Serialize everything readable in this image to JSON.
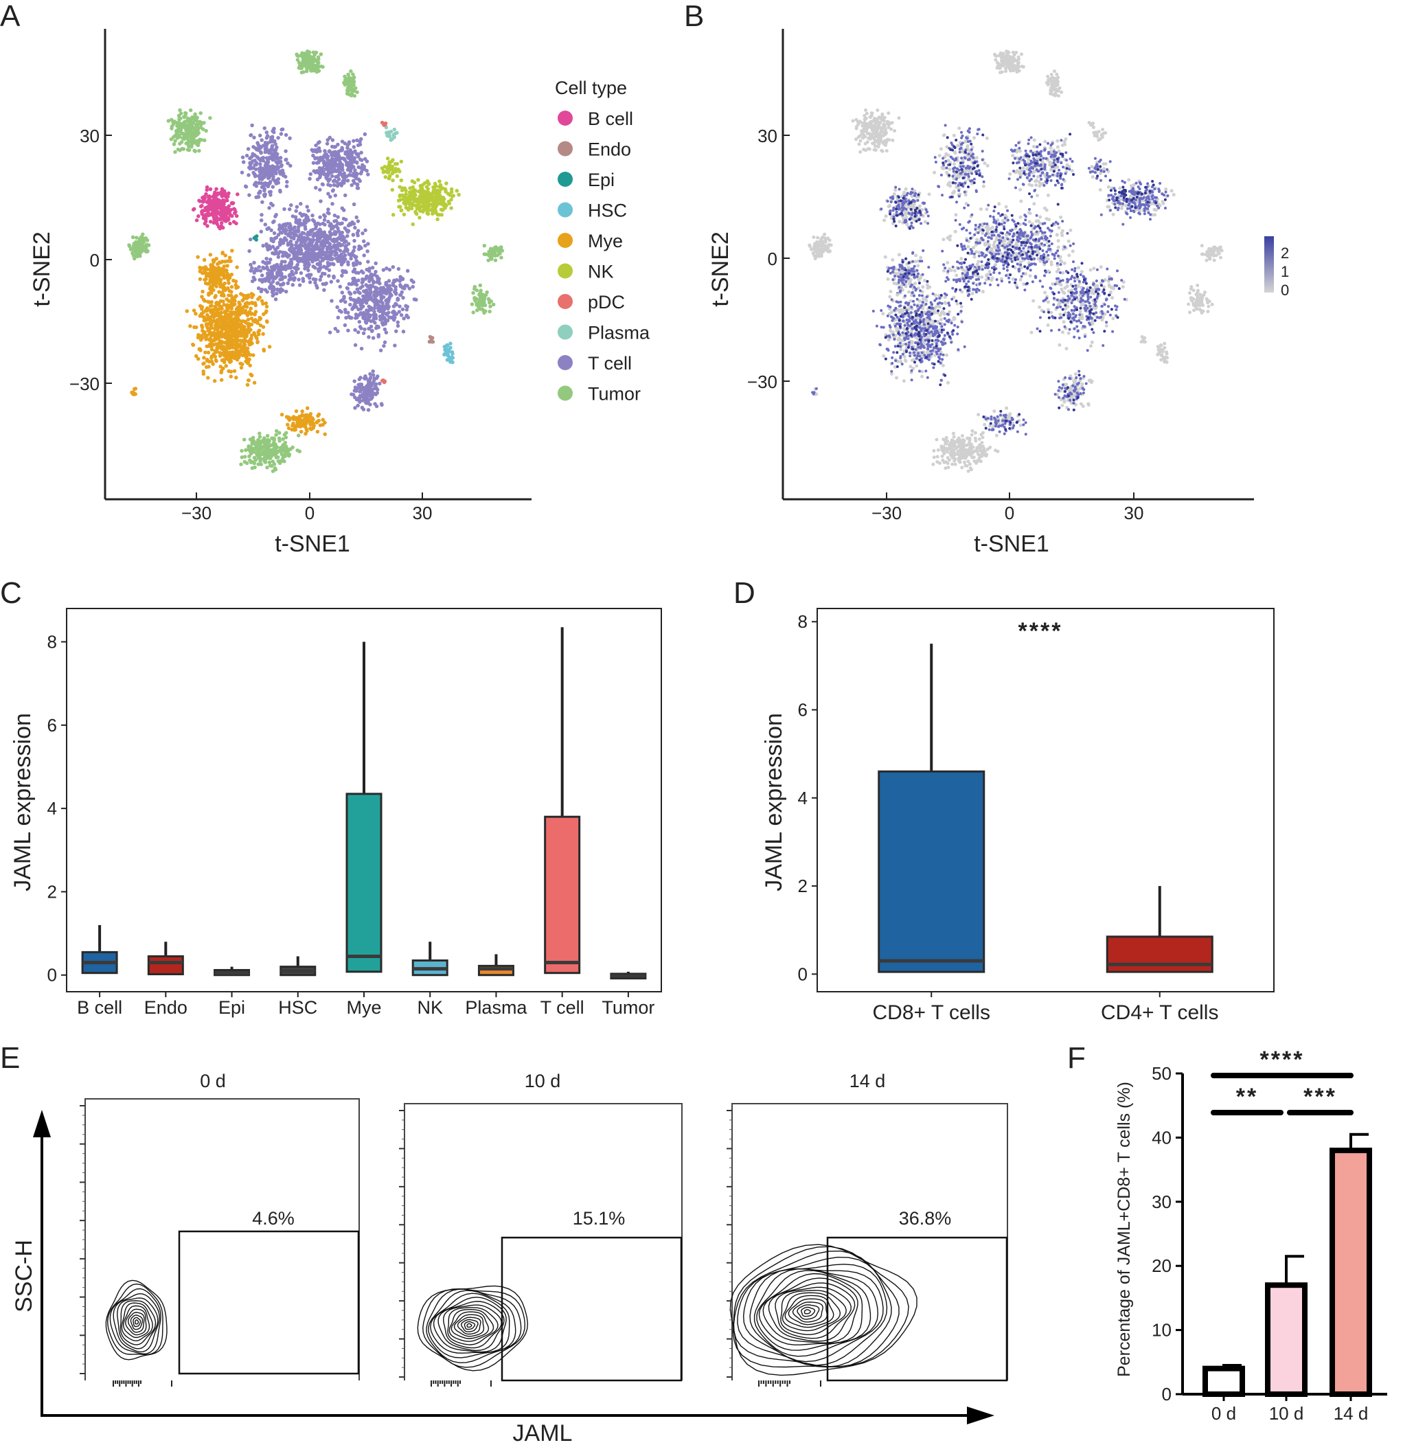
{
  "panels": {
    "A": {
      "letter": "A",
      "xlabel": "t-SNE1",
      "ylabel": "t-SNE2",
      "xticks": [
        "−30",
        "0",
        "30"
      ],
      "yticks": [
        "30",
        "0",
        "−30"
      ],
      "legend_title": "Cell type",
      "legend": [
        {
          "label": "B cell",
          "color": "#e0489a"
        },
        {
          "label": "Endo",
          "color": "#b58a86"
        },
        {
          "label": "Epi",
          "color": "#1f9a93"
        },
        {
          "label": "HSC",
          "color": "#6cc3d5"
        },
        {
          "label": "Mye",
          "color": "#e8a11c"
        },
        {
          "label": "NK",
          "color": "#b7cc38"
        },
        {
          "label": "pDC",
          "color": "#e8706d"
        },
        {
          "label": "Plasma",
          "color": "#8fcfbf"
        },
        {
          "label": "T cell",
          "color": "#8c82c3"
        },
        {
          "label": "Tumor",
          "color": "#93c97e"
        }
      ]
    },
    "B": {
      "letter": "B",
      "xlabel": "t-SNE1",
      "ylabel": "t-SNE2",
      "xticks": [
        "−30",
        "0",
        "30"
      ],
      "yticks": [
        "30",
        "0",
        "−30"
      ],
      "colorbar_ticks": [
        "2",
        "1",
        "0"
      ],
      "colorbar_colors": [
        "#3a3fa0",
        "#d4d4d4"
      ]
    },
    "E": {
      "letter": "E",
      "xlabel": "JAML",
      "ylabel": "SSC-H",
      "plots": [
        {
          "condition": "0 d",
          "gate": "4.6%"
        },
        {
          "condition": "10 d",
          "gate": "15.1%"
        },
        {
          "condition": "14 d",
          "gate": "36.8%"
        }
      ]
    }
  },
  "chart_data": [
    {
      "panel": "C",
      "letter": "C",
      "type": "box",
      "ylabel": "JAML expression",
      "ylim": [
        -0.4,
        8.8
      ],
      "yticks": [
        "0",
        "2",
        "4",
        "6",
        "8"
      ],
      "categories": [
        "B cell",
        "Endo",
        "Epi",
        "HSC",
        "Mye",
        "NK",
        "Plasma",
        "T cell",
        "Tumor"
      ],
      "colors": [
        "#1f63a0",
        "#b3261e",
        "#444444",
        "#444444",
        "#22a19a",
        "#5bb3cf",
        "#e8882a",
        "#ec6b6b",
        "#444444"
      ],
      "boxes": [
        {
          "min": 0.0,
          "q1": 0.05,
          "median": 0.3,
          "q3": 0.55,
          "max": 1.2
        },
        {
          "min": 0.0,
          "q1": 0.02,
          "median": 0.3,
          "q3": 0.45,
          "max": 0.8
        },
        {
          "min": 0.0,
          "q1": 0.0,
          "median": 0.05,
          "q3": 0.12,
          "max": 0.2
        },
        {
          "min": 0.0,
          "q1": 0.0,
          "median": 0.1,
          "q3": 0.2,
          "max": 0.45
        },
        {
          "min": 0.0,
          "q1": 0.08,
          "median": 0.45,
          "q3": 4.35,
          "max": 8.0
        },
        {
          "min": 0.0,
          "q1": 0.0,
          "median": 0.15,
          "q3": 0.35,
          "max": 0.8
        },
        {
          "min": 0.0,
          "q1": 0.0,
          "median": 0.15,
          "q3": 0.22,
          "max": 0.5
        },
        {
          "min": 0.0,
          "q1": 0.05,
          "median": 0.3,
          "q3": 3.8,
          "max": 8.35
        },
        {
          "min": -0.08,
          "q1": -0.08,
          "median": -0.02,
          "q3": 0.03,
          "max": 0.08
        }
      ]
    },
    {
      "panel": "D",
      "letter": "D",
      "type": "box",
      "ylabel": "JAML expression",
      "ylim": [
        -0.4,
        8.3
      ],
      "yticks": [
        "0",
        "2",
        "4",
        "6",
        "8"
      ],
      "categories": [
        "CD8+ T cells",
        "CD4+ T cells"
      ],
      "colors": [
        "#1f63a0",
        "#b3261e"
      ],
      "boxes": [
        {
          "min": 0.0,
          "q1": 0.05,
          "median": 0.3,
          "q3": 4.6,
          "max": 7.5
        },
        {
          "min": 0.0,
          "q1": 0.05,
          "median": 0.22,
          "q3": 0.85,
          "max": 2.0
        }
      ],
      "annotation": "****"
    },
    {
      "panel": "F",
      "letter": "F",
      "type": "bar",
      "ylabel": "Percentage of JAML+CD8+ T cells (%)",
      "ylim": [
        0,
        50
      ],
      "yticks": [
        "0",
        "10",
        "20",
        "30",
        "40",
        "50"
      ],
      "categories": [
        "0 d",
        "10 d",
        "14 d"
      ],
      "values": [
        4.0,
        17.0,
        38.0
      ],
      "errors": [
        0.5,
        4.5,
        2.5
      ],
      "colors": [
        "#ffffff",
        "#fbd3df",
        "#f2a299"
      ],
      "significance": [
        {
          "from": 0,
          "to": 2,
          "label": "****"
        },
        {
          "from": 0,
          "to": 1,
          "label": "**"
        },
        {
          "from": 1,
          "to": 2,
          "label": "***"
        }
      ]
    }
  ]
}
